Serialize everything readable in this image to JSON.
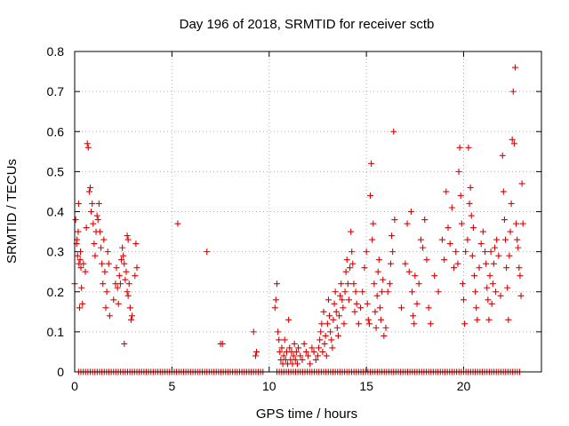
{
  "chart_data": {
    "type": "scatter",
    "title": "Day 196 of 2018, SRMTID for receiver sctb",
    "xlabel": "GPS time / hours",
    "ylabel": "SRMTID / TECUs",
    "xlim": [
      0,
      24
    ],
    "ylim": [
      0,
      0.8
    ],
    "xticks": [
      0,
      5,
      10,
      15,
      20
    ],
    "yticks": [
      0,
      0.1,
      0.2,
      0.3,
      0.4,
      0.5,
      0.6,
      0.7,
      0.8
    ],
    "ytick_labels": [
      "0",
      "0.1",
      "0.2",
      "0.3",
      "0.4",
      "0.5",
      "0.6",
      "0.7",
      "0.8"
    ],
    "grid": true,
    "marker": "+",
    "color": "#e00000",
    "series": [
      {
        "name": "SRMTID",
        "points": [
          [
            0.0,
            0.22
          ],
          [
            0.05,
            0.38
          ],
          [
            0.1,
            0.32
          ],
          [
            0.12,
            0.33
          ],
          [
            0.15,
            0.29
          ],
          [
            0.18,
            0.35
          ],
          [
            0.2,
            0.42
          ],
          [
            0.22,
            0.27
          ],
          [
            0.25,
            0.16
          ],
          [
            0.28,
            0.28
          ],
          [
            0.3,
            0.3
          ],
          [
            0.32,
            0.26
          ],
          [
            0.35,
            0.21
          ],
          [
            0.4,
            0.17
          ],
          [
            0.45,
            0.27
          ],
          [
            0.55,
            0.25
          ],
          [
            0.6,
            0.36
          ],
          [
            0.65,
            0.57
          ],
          [
            0.7,
            0.56
          ],
          [
            0.75,
            0.45
          ],
          [
            0.8,
            0.46
          ],
          [
            0.85,
            0.4
          ],
          [
            0.9,
            0.42
          ],
          [
            0.95,
            0.37
          ],
          [
            1.0,
            0.32
          ],
          [
            1.05,
            0.29
          ],
          [
            1.1,
            0.35
          ],
          [
            1.15,
            0.39
          ],
          [
            1.2,
            0.38
          ],
          [
            1.25,
            0.42
          ],
          [
            1.3,
            0.35
          ],
          [
            1.35,
            0.31
          ],
          [
            1.4,
            0.27
          ],
          [
            1.45,
            0.22
          ],
          [
            1.5,
            0.33
          ],
          [
            1.55,
            0.25
          ],
          [
            1.6,
            0.16
          ],
          [
            1.65,
            0.2
          ],
          [
            1.7,
            0.3
          ],
          [
            1.75,
            0.27
          ],
          [
            1.8,
            0.14
          ],
          [
            2.0,
            0.18
          ],
          [
            2.1,
            0.22
          ],
          [
            2.15,
            0.26
          ],
          [
            2.2,
            0.21
          ],
          [
            2.25,
            0.17
          ],
          [
            2.3,
            0.24
          ],
          [
            2.35,
            0.22
          ],
          [
            2.4,
            0.28
          ],
          [
            2.45,
            0.31
          ],
          [
            2.5,
            0.29
          ],
          [
            2.55,
            0.27
          ],
          [
            2.6,
            0.23
          ],
          [
            2.65,
            0.25
          ],
          [
            2.7,
            0.2
          ],
          [
            2.75,
            0.19
          ],
          [
            2.8,
            0.22
          ],
          [
            2.85,
            0.16
          ],
          [
            2.9,
            0.13
          ],
          [
            2.95,
            0.14
          ],
          [
            2.55,
            0.07
          ],
          [
            2.7,
            0.34
          ],
          [
            2.75,
            0.33
          ],
          [
            3.1,
            0.24
          ],
          [
            3.15,
            0.32
          ],
          [
            3.2,
            0.26
          ],
          [
            5.3,
            0.37
          ],
          [
            6.8,
            0.3
          ],
          [
            7.5,
            0.07
          ],
          [
            7.6,
            0.07
          ],
          [
            9.2,
            0.1
          ],
          [
            9.3,
            0.04
          ],
          [
            9.35,
            0.05
          ],
          [
            10.3,
            0.16
          ],
          [
            10.35,
            0.18
          ],
          [
            10.4,
            0.22
          ],
          [
            10.45,
            0.1
          ],
          [
            10.5,
            0.08
          ],
          [
            10.55,
            0.05
          ],
          [
            10.6,
            0.03
          ],
          [
            10.65,
            0.06
          ],
          [
            10.7,
            0.02
          ],
          [
            10.75,
            0.04
          ],
          [
            10.8,
            0.08
          ],
          [
            10.85,
            0.03
          ],
          [
            10.9,
            0.05
          ],
          [
            10.95,
            0.02
          ],
          [
            11.0,
            0.13
          ],
          [
            11.05,
            0.06
          ],
          [
            11.1,
            0.03
          ],
          [
            11.15,
            0.05
          ],
          [
            11.2,
            0.02
          ],
          [
            11.25,
            0.04
          ],
          [
            11.3,
            0.07
          ],
          [
            11.35,
            0.03
          ],
          [
            11.4,
            0.05
          ],
          [
            11.45,
            0.02
          ],
          [
            11.5,
            0.06
          ],
          [
            11.6,
            0.04
          ],
          [
            11.7,
            0.03
          ],
          [
            11.8,
            0.07
          ],
          [
            11.9,
            0.05
          ],
          [
            12.0,
            0.04
          ],
          [
            12.1,
            0.02
          ],
          [
            12.2,
            0.06
          ],
          [
            12.3,
            0.05
          ],
          [
            12.4,
            0.03
          ],
          [
            12.5,
            0.04
          ],
          [
            12.55,
            0.06
          ],
          [
            12.6,
            0.08
          ],
          [
            12.65,
            0.1
          ],
          [
            12.7,
            0.12
          ],
          [
            12.75,
            0.05
          ],
          [
            12.8,
            0.15
          ],
          [
            12.85,
            0.07
          ],
          [
            12.9,
            0.09
          ],
          [
            12.95,
            0.04
          ],
          [
            13.0,
            0.12
          ],
          [
            13.05,
            0.18
          ],
          [
            13.1,
            0.14
          ],
          [
            13.15,
            0.1
          ],
          [
            13.2,
            0.08
          ],
          [
            13.25,
            0.06
          ],
          [
            13.3,
            0.13
          ],
          [
            13.35,
            0.17
          ],
          [
            13.4,
            0.2
          ],
          [
            13.45,
            0.15
          ],
          [
            13.5,
            0.11
          ],
          [
            13.55,
            0.09
          ],
          [
            13.6,
            0.14
          ],
          [
            13.65,
            0.19
          ],
          [
            13.7,
            0.22
          ],
          [
            13.75,
            0.18
          ],
          [
            13.8,
            0.16
          ],
          [
            13.85,
            0.12
          ],
          [
            13.9,
            0.2
          ],
          [
            13.95,
            0.25
          ],
          [
            14.0,
            0.28
          ],
          [
            14.05,
            0.22
          ],
          [
            14.1,
            0.18
          ],
          [
            14.15,
            0.26
          ],
          [
            14.2,
            0.35
          ],
          [
            14.25,
            0.3
          ],
          [
            14.3,
            0.27
          ],
          [
            14.35,
            0.22
          ],
          [
            14.4,
            0.15
          ],
          [
            14.45,
            0.2
          ],
          [
            14.5,
            0.17
          ],
          [
            14.6,
            0.12
          ],
          [
            14.7,
            0.16
          ],
          [
            14.8,
            0.2
          ],
          [
            14.9,
            0.26
          ],
          [
            15.0,
            0.3
          ],
          [
            15.05,
            0.17
          ],
          [
            15.1,
            0.13
          ],
          [
            15.15,
            0.12
          ],
          [
            15.2,
            0.44
          ],
          [
            15.25,
            0.52
          ],
          [
            15.3,
            0.33
          ],
          [
            15.35,
            0.37
          ],
          [
            15.4,
            0.22
          ],
          [
            15.45,
            0.15
          ],
          [
            15.5,
            0.11
          ],
          [
            15.55,
            0.19
          ],
          [
            15.6,
            0.25
          ],
          [
            15.65,
            0.28
          ],
          [
            15.7,
            0.16
          ],
          [
            15.75,
            0.13
          ],
          [
            15.8,
            0.2
          ],
          [
            15.85,
            0.23
          ],
          [
            15.9,
            0.09
          ],
          [
            16.0,
            0.11
          ],
          [
            16.1,
            0.2
          ],
          [
            16.2,
            0.22
          ],
          [
            16.25,
            0.27
          ],
          [
            16.3,
            0.34
          ],
          [
            16.35,
            0.3
          ],
          [
            16.4,
            0.6
          ],
          [
            16.45,
            0.38
          ],
          [
            16.8,
            0.16
          ],
          [
            17.0,
            0.27
          ],
          [
            17.1,
            0.37
          ],
          [
            17.2,
            0.25
          ],
          [
            17.3,
            0.4
          ],
          [
            17.35,
            0.2
          ],
          [
            17.4,
            0.14
          ],
          [
            17.45,
            0.12
          ],
          [
            17.5,
            0.24
          ],
          [
            17.6,
            0.17
          ],
          [
            17.7,
            0.22
          ],
          [
            17.8,
            0.33
          ],
          [
            17.9,
            0.31
          ],
          [
            18.0,
            0.38
          ],
          [
            18.1,
            0.28
          ],
          [
            18.2,
            0.16
          ],
          [
            18.3,
            0.12
          ],
          [
            18.5,
            0.24
          ],
          [
            18.7,
            0.2
          ],
          [
            18.9,
            0.33
          ],
          [
            19.0,
            0.28
          ],
          [
            19.1,
            0.45
          ],
          [
            19.2,
            0.36
          ],
          [
            19.3,
            0.32
          ],
          [
            19.4,
            0.41
          ],
          [
            19.5,
            0.26
          ],
          [
            19.6,
            0.3
          ],
          [
            19.7,
            0.27
          ],
          [
            19.75,
            0.5
          ],
          [
            19.8,
            0.56
          ],
          [
            19.85,
            0.44
          ],
          [
            19.9,
            0.37
          ],
          [
            19.95,
            0.22
          ],
          [
            20.0,
            0.18
          ],
          [
            20.05,
            0.12
          ],
          [
            20.1,
            0.3
          ],
          [
            20.2,
            0.33
          ],
          [
            20.25,
            0.56
          ],
          [
            20.3,
            0.42
          ],
          [
            20.35,
            0.46
          ],
          [
            20.4,
            0.39
          ],
          [
            20.45,
            0.29
          ],
          [
            20.5,
            0.36
          ],
          [
            20.55,
            0.24
          ],
          [
            20.6,
            0.2
          ],
          [
            20.65,
            0.16
          ],
          [
            20.7,
            0.13
          ],
          [
            20.8,
            0.26
          ],
          [
            20.9,
            0.32
          ],
          [
            21.0,
            0.35
          ],
          [
            21.1,
            0.3
          ],
          [
            21.15,
            0.27
          ],
          [
            21.2,
            0.21
          ],
          [
            21.25,
            0.18
          ],
          [
            21.3,
            0.13
          ],
          [
            21.35,
            0.24
          ],
          [
            21.4,
            0.3
          ],
          [
            21.45,
            0.17
          ],
          [
            21.5,
            0.22
          ],
          [
            21.55,
            0.27
          ],
          [
            21.6,
            0.31
          ],
          [
            21.65,
            0.2
          ],
          [
            21.7,
            0.33
          ],
          [
            21.8,
            0.29
          ],
          [
            21.9,
            0.19
          ],
          [
            22.0,
            0.54
          ],
          [
            22.05,
            0.45
          ],
          [
            22.1,
            0.38
          ],
          [
            22.15,
            0.33
          ],
          [
            22.2,
            0.26
          ],
          [
            22.25,
            0.21
          ],
          [
            22.3,
            0.13
          ],
          [
            22.35,
            0.29
          ],
          [
            22.4,
            0.35
          ],
          [
            22.45,
            0.42
          ],
          [
            22.5,
            0.58
          ],
          [
            22.55,
            0.7
          ],
          [
            22.6,
            0.57
          ],
          [
            22.65,
            0.76
          ],
          [
            22.7,
            0.37
          ],
          [
            22.75,
            0.33
          ],
          [
            22.8,
            0.31
          ],
          [
            22.85,
            0.26
          ],
          [
            22.9,
            0.24
          ],
          [
            22.95,
            0.19
          ],
          [
            23.0,
            0.47
          ],
          [
            23.05,
            0.37
          ]
        ]
      }
    ],
    "baseline": {
      "value": 0,
      "x_range": [
        0.2,
        22.9
      ],
      "step": 0.12,
      "gap": [
        9.7,
        10.3
      ]
    }
  }
}
